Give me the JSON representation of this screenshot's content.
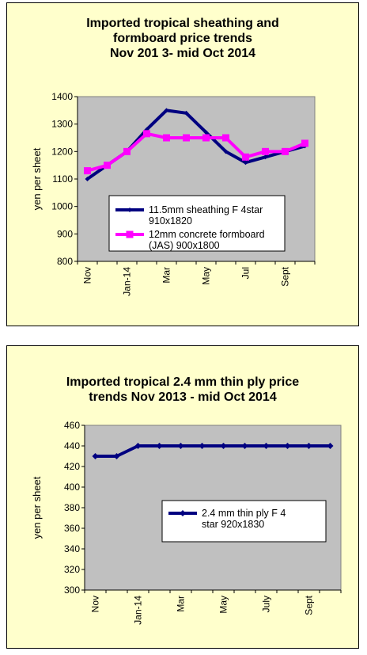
{
  "chart_data": [
    {
      "type": "line",
      "title_lines": [
        "Imported tropical sheathing and",
        "formboard price trends",
        "Nov 201 3- mid Oct 2014"
      ],
      "ylabel": "yen per sheet",
      "ylim": [
        800,
        1400
      ],
      "yticks": [
        800,
        900,
        1000,
        1100,
        1200,
        1300,
        1400
      ],
      "x_tick_labels": [
        "Nov",
        "Jan-14",
        "Mar",
        "May",
        "Jul",
        "Sept"
      ],
      "grid": false,
      "legend_position": "lower-center",
      "series": [
        {
          "name_lines": [
            "11.5mm sheathing F 4star",
            "910x1820"
          ],
          "color": "#000080",
          "marker": "diamond",
          "values": [
            1100,
            1150,
            1200,
            1280,
            1350,
            1340,
            1270,
            1200,
            1160,
            1180,
            1200,
            1220
          ]
        },
        {
          "name_lines": [
            "12mm concrete formboard",
            "(JAS) 900x1800"
          ],
          "color": "#ff00ff",
          "marker": "square",
          "values": [
            1130,
            1150,
            1200,
            1265,
            1250,
            1250,
            1250,
            1250,
            1180,
            1200,
            1200,
            1230
          ]
        }
      ]
    },
    {
      "type": "line",
      "title_lines": [
        "Imported tropical 2.4 mm thin ply price",
        "trends  Nov 2013 - mid Oct 2014"
      ],
      "ylabel": "yen per sheet",
      "ylim": [
        300,
        460
      ],
      "yticks": [
        300,
        320,
        340,
        360,
        380,
        400,
        420,
        440,
        460
      ],
      "x_tick_labels": [
        "Nov",
        "Jan-14",
        "Mar",
        "May",
        "July",
        "Sept"
      ],
      "grid": false,
      "legend_position": "right-center",
      "series": [
        {
          "name_lines": [
            "2.4 mm thin ply F 4",
            "star 920x1830"
          ],
          "color": "#000080",
          "marker": "diamond",
          "values": [
            430,
            430,
            440,
            440,
            440,
            440,
            440,
            440,
            440,
            440,
            440,
            440
          ]
        }
      ]
    }
  ]
}
